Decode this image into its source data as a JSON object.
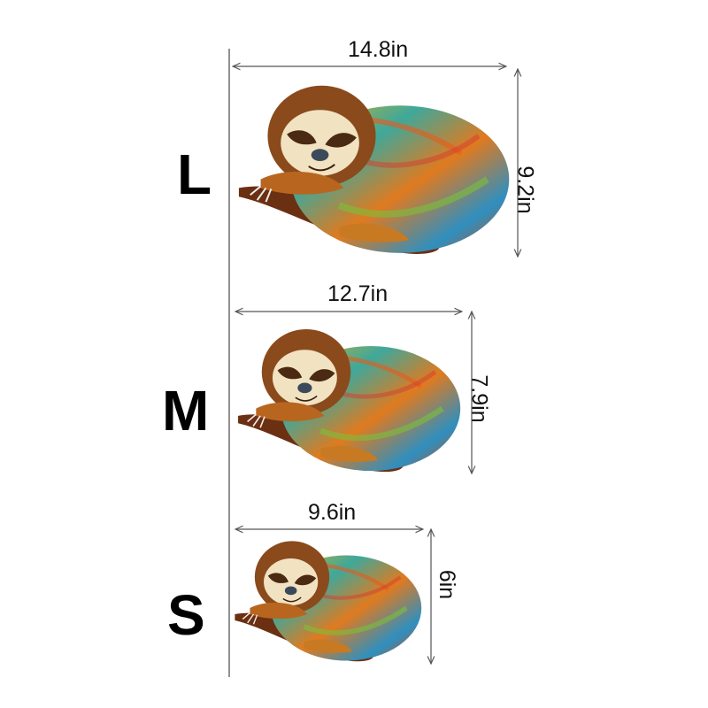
{
  "sizes": [
    {
      "label": "L",
      "width": "14.8in",
      "height": "9.2in"
    },
    {
      "label": "M",
      "width": "12.7in",
      "height": "7.9in"
    },
    {
      "label": "S",
      "width": "9.6in",
      "height": "6in"
    }
  ],
  "colors": {
    "text": "#000000",
    "lines": "#555555",
    "fur_brown": "#8a4a1c",
    "branch": "#6b2f12"
  }
}
